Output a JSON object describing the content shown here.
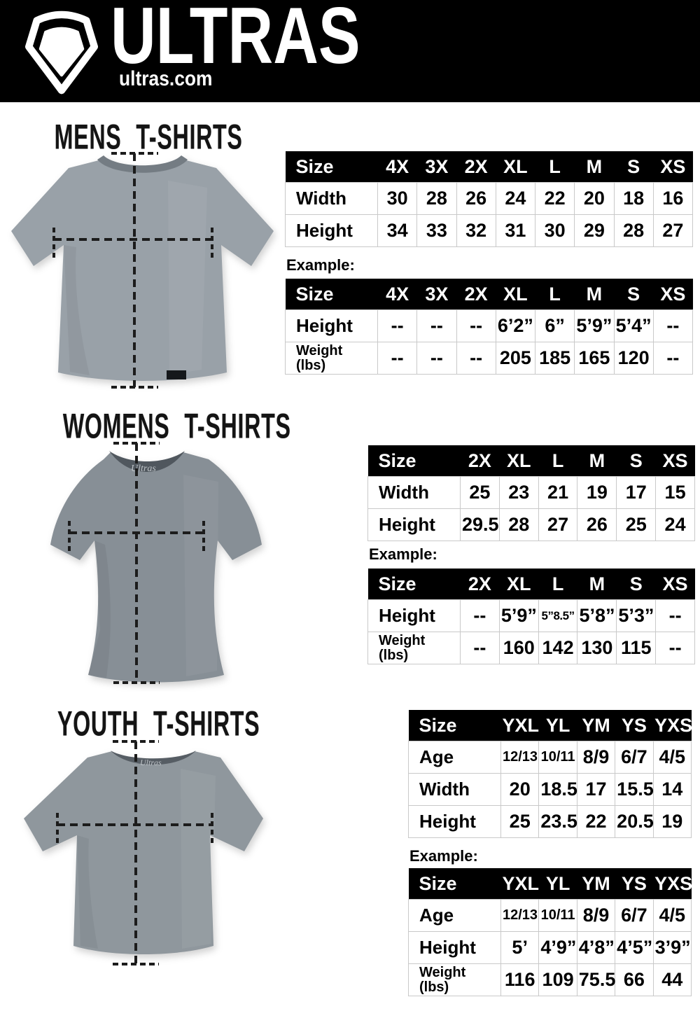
{
  "header": {
    "brand": "ULTRAS",
    "site": "ultras.com"
  },
  "sections": [
    {
      "title": "MENS T-SHIRTS",
      "size_table": {
        "header": [
          "Size",
          "4X",
          "3X",
          "2X",
          "XL",
          "L",
          "M",
          "S",
          "XS"
        ],
        "rows": [
          {
            "label": "Width",
            "values": [
              "30",
              "28",
              "26",
              "24",
              "22",
              "20",
              "18",
              "16"
            ]
          },
          {
            "label": "Height",
            "values": [
              "34",
              "33",
              "32",
              "31",
              "30",
              "29",
              "28",
              "27"
            ]
          }
        ]
      },
      "example_label": "Example:",
      "example_table": {
        "header": [
          "Size",
          "4X",
          "3X",
          "2X",
          "XL",
          "L",
          "M",
          "S",
          "XS"
        ],
        "rows": [
          {
            "label": "Height",
            "values": [
              "--",
              "--",
              "--",
              "6’2”",
              "6”",
              "5’9”",
              "5’4”",
              "--"
            ]
          },
          {
            "label": "Weight\n(lbs)",
            "values": [
              "--",
              "--",
              "--",
              "205",
              "185",
              "165",
              "120",
              "--"
            ]
          }
        ]
      }
    },
    {
      "title": "WOMENS T-SHIRTS",
      "neck_label": "Ultras",
      "size_table": {
        "header": [
          "Size",
          "2X",
          "XL",
          "L",
          "M",
          "S",
          "XS"
        ],
        "rows": [
          {
            "label": "Width",
            "values": [
              "25",
              "23",
              "21",
              "19",
              "17",
              "15"
            ]
          },
          {
            "label": "Height",
            "values": [
              "29.5",
              "28",
              "27",
              "26",
              "25",
              "24"
            ]
          }
        ]
      },
      "example_label": "Example:",
      "example_table": {
        "header": [
          "Size",
          "2X",
          "XL",
          "L",
          "M",
          "S",
          "XS"
        ],
        "rows": [
          {
            "label": "Height",
            "values": [
              "--",
              "5’9”",
              "5”8.5”",
              "5’8”",
              "5’3”",
              "--"
            ]
          },
          {
            "label": "Weight\n(lbs)",
            "values": [
              "--",
              "160",
              "142",
              "130",
              "115",
              "--"
            ]
          }
        ]
      }
    },
    {
      "title": "YOUTH T-SHIRTS",
      "neck_label": "Ultras",
      "size_table": {
        "header": [
          "Size",
          "YXL",
          "YL",
          "YM",
          "YS",
          "YXS"
        ],
        "rows": [
          {
            "label": "Age",
            "values": [
              "12/13",
              "10/11",
              "8/9",
              "6/7",
              "4/5"
            ]
          },
          {
            "label": "Width",
            "values": [
              "20",
              "18.5",
              "17",
              "15.5",
              "14"
            ]
          },
          {
            "label": "Height",
            "values": [
              "25",
              "23.5",
              "22",
              "20.5",
              "19"
            ]
          }
        ]
      },
      "example_label": "Example:",
      "example_table": {
        "header": [
          "Size",
          "YXL",
          "YL",
          "YM",
          "YS",
          "YXS"
        ],
        "rows": [
          {
            "label": "Age",
            "values": [
              "12/13",
              "10/11",
              "8/9",
              "6/7",
              "4/5"
            ]
          },
          {
            "label": "Height",
            "values": [
              "5’",
              "4’9”",
              "4’8”",
              "4’5”",
              "3’9”"
            ]
          },
          {
            "label": "Weight\n(lbs)",
            "values": [
              "116",
              "109",
              "75.5",
              "66",
              "44"
            ]
          }
        ]
      }
    }
  ]
}
